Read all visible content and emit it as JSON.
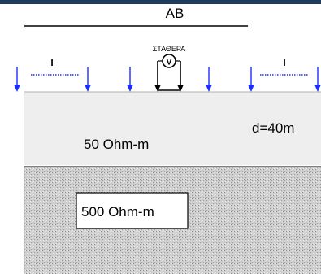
{
  "title": "AB",
  "electrode_label": "ΣΤΑΘΕΡΑ",
  "voltmeter_symbol": "V",
  "current_label": "I",
  "layers": {
    "top": {
      "resistivity_label": "50 Ohm-m",
      "thickness_label": "d=40m"
    },
    "bottom": {
      "resistivity_label": "500 Ohm-m"
    }
  },
  "colors": {
    "top_bar": "#1f3b5c",
    "current_arrow": "#1a2dff",
    "potential_arrow": "#000000",
    "top_layer_fill": "#eeeeee",
    "bottom_layer_fill": "#c8c8c8",
    "current_dotted_line": "#1a2dff"
  },
  "icons": {
    "voltmeter": "voltmeter-icon",
    "arrow": "down-arrow-icon"
  }
}
